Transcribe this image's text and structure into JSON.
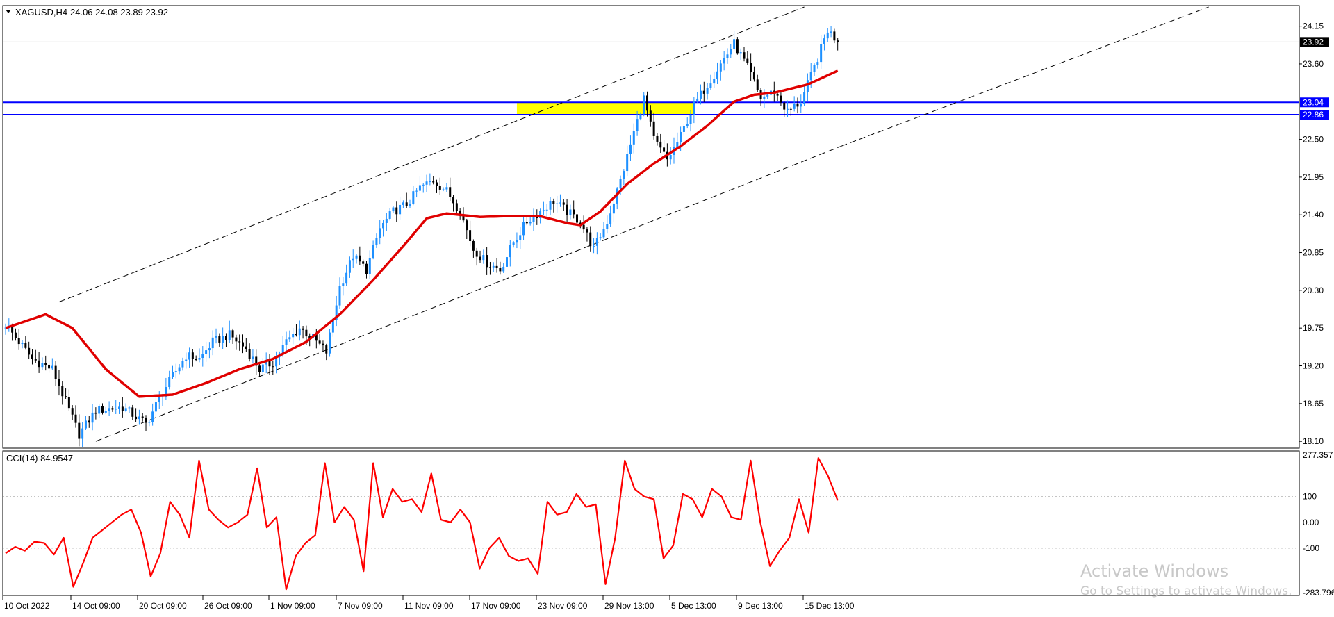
{
  "header": {
    "symbol": "XAGUSD,H4",
    "ohlc": "24.06 24.08 23.89 23.92"
  },
  "watermark": {
    "line1": "Activate Windows",
    "line2": "Go to Settings to activate Windows."
  },
  "colors": {
    "bull": "#1e90ff",
    "bear": "#000000",
    "ma": "#e00000",
    "level_line": "#0000ff",
    "zone": "#ffff00",
    "cci": "#ff0000",
    "channel": "#000000"
  },
  "chart_data": [
    {
      "type": "candlestick",
      "name": "XAGUSD,H4",
      "y_axis_ticks": [
        24.15,
        23.6,
        22.5,
        21.95,
        21.4,
        20.85,
        20.3,
        19.75,
        19.2,
        18.65,
        18.1
      ],
      "ylim": [
        18.0,
        24.45
      ],
      "x_axis_labels": [
        "10 Oct 2022",
        "14 Oct 09:00",
        "20 Oct 09:00",
        "26 Oct 09:00",
        "1 Nov 09:00",
        "7 Nov 09:00",
        "11 Nov 09:00",
        "17 Nov 09:00",
        "23 Nov 09:00",
        "29 Nov 13:00",
        "5 Dec 13:00",
        "9 Dec 13:00",
        "15 Dec 13:00"
      ],
      "bars_count": 250,
      "close_anchors": [
        [
          0,
          19.8
        ],
        [
          8,
          19.3
        ],
        [
          14,
          19.15
        ],
        [
          22,
          18.2
        ],
        [
          27,
          18.55
        ],
        [
          35,
          18.6
        ],
        [
          42,
          18.35
        ],
        [
          48,
          18.9
        ],
        [
          54,
          19.35
        ],
        [
          58,
          19.3
        ],
        [
          62,
          19.55
        ],
        [
          67,
          19.65
        ],
        [
          72,
          19.45
        ],
        [
          76,
          19.15
        ],
        [
          80,
          19.25
        ],
        [
          84,
          19.55
        ],
        [
          88,
          19.75
        ],
        [
          92,
          19.6
        ],
        [
          96,
          19.4
        ],
        [
          100,
          20.35
        ],
        [
          104,
          20.8
        ],
        [
          108,
          20.6
        ],
        [
          112,
          21.2
        ],
        [
          116,
          21.45
        ],
        [
          120,
          21.55
        ],
        [
          124,
          21.8
        ],
        [
          128,
          21.9
        ],
        [
          132,
          21.75
        ],
        [
          136,
          21.45
        ],
        [
          140,
          20.9
        ],
        [
          144,
          20.7
        ],
        [
          148,
          20.6
        ],
        [
          152,
          21.0
        ],
        [
          156,
          21.3
        ],
        [
          160,
          21.45
        ],
        [
          164,
          21.6
        ],
        [
          168,
          21.45
        ],
        [
          172,
          21.3
        ],
        [
          176,
          20.9
        ],
        [
          180,
          21.3
        ],
        [
          184,
          21.9
        ],
        [
          188,
          22.6
        ],
        [
          191,
          23.1
        ],
        [
          194,
          22.5
        ],
        [
          198,
          22.2
        ],
        [
          202,
          22.55
        ],
        [
          206,
          23.0
        ],
        [
          210,
          23.3
        ],
        [
          214,
          23.6
        ],
        [
          218,
          23.9
        ],
        [
          222,
          23.55
        ],
        [
          226,
          23.1
        ],
        [
          230,
          23.2
        ],
        [
          234,
          22.9
        ],
        [
          238,
          23.05
        ],
        [
          242,
          23.55
        ],
        [
          246,
          24.1
        ],
        [
          249,
          23.92
        ]
      ],
      "last_price": 23.92,
      "horizontal_levels": [
        23.04,
        22.86
      ],
      "support_zone": [
        22.86,
        23.04
      ],
      "moving_average_anchors": [
        [
          0,
          19.75
        ],
        [
          12,
          19.95
        ],
        [
          20,
          19.75
        ],
        [
          30,
          19.15
        ],
        [
          40,
          18.75
        ],
        [
          50,
          18.78
        ],
        [
          60,
          18.95
        ],
        [
          70,
          19.15
        ],
        [
          80,
          19.3
        ],
        [
          90,
          19.55
        ],
        [
          100,
          19.95
        ],
        [
          110,
          20.45
        ],
        [
          120,
          21.0
        ],
        [
          126,
          21.35
        ],
        [
          132,
          21.42
        ],
        [
          142,
          21.37
        ],
        [
          150,
          21.38
        ],
        [
          160,
          21.38
        ],
        [
          168,
          21.28
        ],
        [
          172,
          21.25
        ],
        [
          178,
          21.45
        ],
        [
          186,
          21.85
        ],
        [
          194,
          22.15
        ],
        [
          202,
          22.4
        ],
        [
          210,
          22.7
        ],
        [
          218,
          23.05
        ],
        [
          224,
          23.15
        ],
        [
          230,
          23.18
        ],
        [
          240,
          23.3
        ],
        [
          249,
          23.5
        ]
      ],
      "channel_upper": [
        [
          16,
          20.13
        ],
        [
          239,
          24.43
        ]
      ],
      "channel_lower": [
        [
          27,
          18.1
        ],
        [
          250,
          22.4
        ]
      ],
      "channel_lower_extension": [
        [
          250,
          22.4
        ],
        [
          360,
          24.43
        ]
      ]
    },
    {
      "type": "line",
      "name": "CCI(14)",
      "label": "CCI(14) 84.9547",
      "y_axis_ticks": [
        "277.357",
        "100",
        "0.00",
        "-100",
        "-283.796"
      ],
      "ylim": [
        -283.796,
        277.357
      ],
      "x_range": [
        0,
        249
      ],
      "points": [
        [
          0,
          -120
        ],
        [
          3,
          -95
        ],
        [
          6,
          -110
        ],
        [
          9,
          -75
        ],
        [
          12,
          -80
        ],
        [
          15,
          -125
        ],
        [
          18,
          -60
        ],
        [
          21,
          -250
        ],
        [
          24,
          -160
        ],
        [
          27,
          -60
        ],
        [
          30,
          -30
        ],
        [
          33,
          0
        ],
        [
          36,
          30
        ],
        [
          39,
          50
        ],
        [
          42,
          -40
        ],
        [
          45,
          -210
        ],
        [
          48,
          -120
        ],
        [
          51,
          80
        ],
        [
          54,
          30
        ],
        [
          57,
          -60
        ],
        [
          60,
          240
        ],
        [
          63,
          50
        ],
        [
          66,
          10
        ],
        [
          69,
          -20
        ],
        [
          72,
          0
        ],
        [
          75,
          30
        ],
        [
          78,
          210
        ],
        [
          81,
          -20
        ],
        [
          84,
          20
        ],
        [
          87,
          -260
        ],
        [
          90,
          -130
        ],
        [
          93,
          -80
        ],
        [
          96,
          -50
        ],
        [
          99,
          230
        ],
        [
          102,
          0
        ],
        [
          105,
          60
        ],
        [
          108,
          10
        ],
        [
          111,
          -190
        ],
        [
          114,
          230
        ],
        [
          117,
          20
        ],
        [
          120,
          130
        ],
        [
          123,
          80
        ],
        [
          126,
          90
        ],
        [
          129,
          40
        ],
        [
          132,
          190
        ],
        [
          135,
          10
        ],
        [
          138,
          0
        ],
        [
          141,
          50
        ],
        [
          144,
          0
        ],
        [
          147,
          -180
        ],
        [
          150,
          -100
        ],
        [
          153,
          -60
        ],
        [
          156,
          -130
        ],
        [
          159,
          -150
        ],
        [
          162,
          -140
        ],
        [
          165,
          -200
        ],
        [
          168,
          80
        ],
        [
          171,
          30
        ],
        [
          174,
          40
        ],
        [
          177,
          110
        ],
        [
          180,
          60
        ],
        [
          183,
          70
        ],
        [
          186,
          -240
        ],
        [
          189,
          -60
        ],
        [
          192,
          240
        ],
        [
          195,
          130
        ],
        [
          198,
          100
        ],
        [
          201,
          90
        ],
        [
          204,
          -140
        ],
        [
          207,
          -90
        ],
        [
          210,
          110
        ],
        [
          213,
          90
        ],
        [
          216,
          20
        ],
        [
          219,
          130
        ],
        [
          222,
          100
        ],
        [
          225,
          20
        ],
        [
          228,
          10
        ],
        [
          231,
          240
        ],
        [
          234,
          0
        ],
        [
          237,
          -170
        ],
        [
          240,
          -110
        ],
        [
          243,
          -60
        ],
        [
          246,
          90
        ],
        [
          249,
          -40
        ],
        [
          252,
          250
        ],
        [
          255,
          180
        ],
        [
          258,
          84.95
        ]
      ]
    }
  ]
}
